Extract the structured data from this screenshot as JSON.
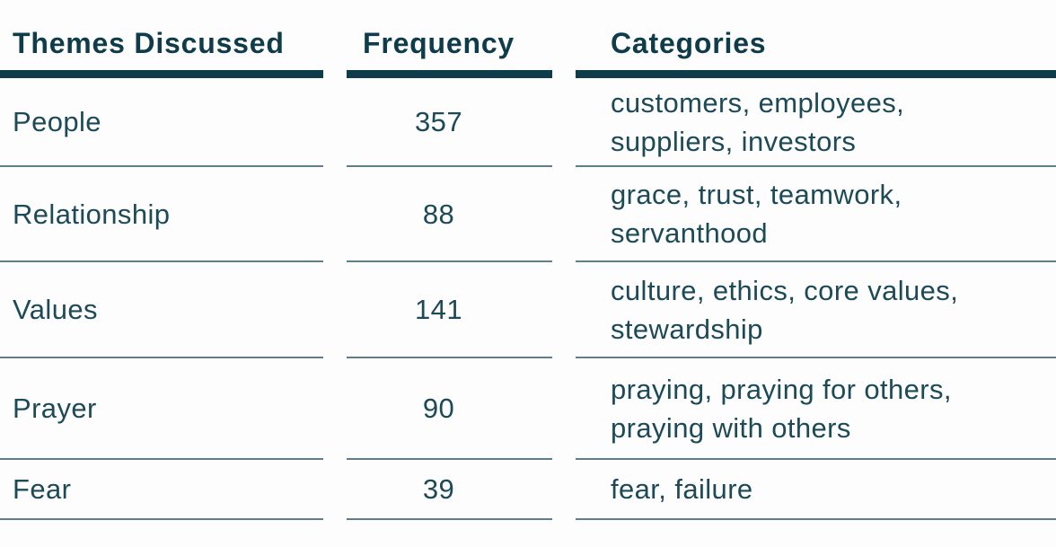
{
  "colors": {
    "heading": "#0e3c4a",
    "body_text": "#1c4a57",
    "header_bar": "#0e3c4a",
    "separator": "#5f7e87",
    "background": "#fdfdfd"
  },
  "table": {
    "columns": [
      {
        "id": "themes",
        "label": "Themes Discussed"
      },
      {
        "id": "frequency",
        "label": "Frequency"
      },
      {
        "id": "categories",
        "label": "Categories"
      }
    ],
    "rows": [
      {
        "theme": "People",
        "frequency": "357",
        "categories": "customers, employees,\nsuppliers, investors"
      },
      {
        "theme": "Relationship",
        "frequency": "88",
        "categories": "grace, trust, teamwork,\nservanthood"
      },
      {
        "theme": "Values",
        "frequency": "141",
        "categories": "culture, ethics, core values,\nstewardship"
      },
      {
        "theme": "Prayer",
        "frequency": "90",
        "categories": "praying, praying for others,\npraying with others"
      },
      {
        "theme": "Fear",
        "frequency": "39",
        "categories": "fear, failure"
      }
    ]
  },
  "chart_data": {
    "type": "table",
    "columns": [
      "Themes Discussed",
      "Frequency",
      "Categories"
    ],
    "rows": [
      [
        "People",
        357,
        "customers, employees, suppliers, investors"
      ],
      [
        "Relationship",
        88,
        "grace, trust, teamwork, servanthood"
      ],
      [
        "Values",
        141,
        "culture, ethics, core values, stewardship"
      ],
      [
        "Prayer",
        90,
        "praying, praying for others, praying with others"
      ],
      [
        "Fear",
        39,
        "fear, failure"
      ]
    ]
  }
}
